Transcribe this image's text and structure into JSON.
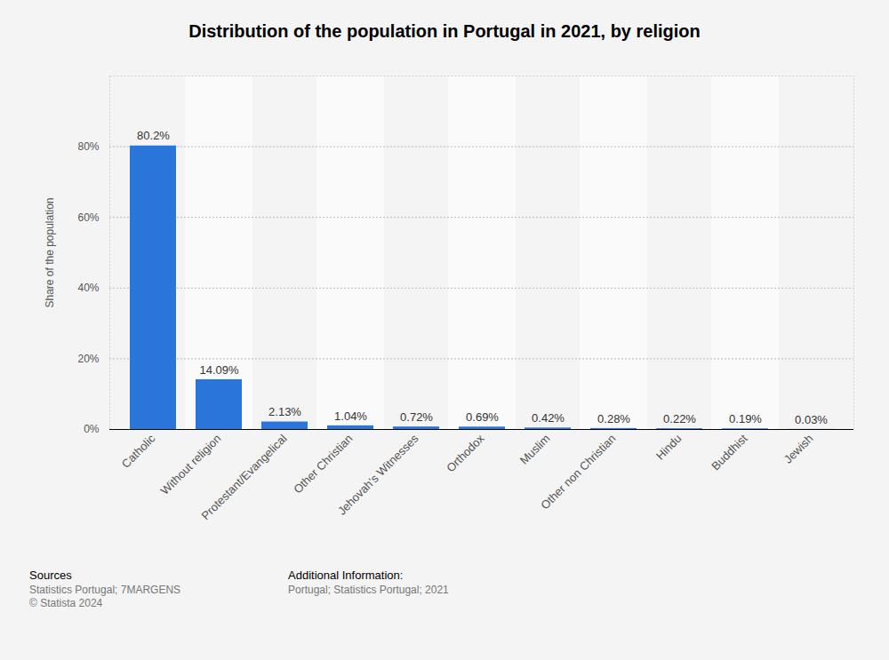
{
  "chart_data": {
    "type": "bar",
    "title": "Distribution of the population in Portugal in 2021, by religion",
    "y_label": "Share of the population",
    "categories": [
      "Catholic",
      "Without religion",
      "Protestant/Evangelical",
      "Other Christian",
      "Jehovah's Witnesses",
      "Orthodox",
      "Muslim",
      "Other non Christian",
      "Hindu",
      "Buddhist",
      "Jewish"
    ],
    "values": [
      80.2,
      14.09,
      2.13,
      1.04,
      0.72,
      0.69,
      0.42,
      0.28,
      0.22,
      0.19,
      0.03
    ],
    "value_labels": [
      "80.2%",
      "14.09%",
      "2.13%",
      "1.04%",
      "0.72%",
      "0.69%",
      "0.42%",
      "0.28%",
      "0.22%",
      "0.19%",
      "0.03%"
    ],
    "data_labels": true,
    "color": "#2a75d9",
    "ylim": [
      0,
      100
    ],
    "yticks": [
      {
        "value": 0,
        "label": "0%"
      },
      {
        "value": 20,
        "label": "20%"
      },
      {
        "value": 40,
        "label": "40%"
      },
      {
        "value": 60,
        "label": "60%"
      },
      {
        "value": 80,
        "label": "80%"
      }
    ],
    "grid": true,
    "sources_title": "Sources",
    "sources": [
      "Statistics Portugal; 7MARGENS",
      "© Statista 2024"
    ],
    "additional_info_title": "Additional Information:",
    "additional_info": [
      "Portugal; Statistics Portugal; 2021"
    ]
  }
}
